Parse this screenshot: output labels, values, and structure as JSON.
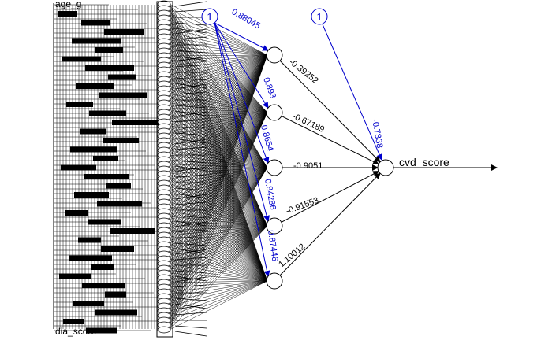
{
  "diagram": {
    "output_label": "cvd_score",
    "bias_label": "1",
    "input_labels_visible": [
      "age_g",
      "dia_score"
    ],
    "hidden_bias_weights": [
      "0.88045",
      "0.893",
      "0.8654",
      "0.84286",
      "0.87446"
    ],
    "hidden_output_weights": [
      "-0.39252",
      "-0.67189",
      "-0.9051",
      "-0.91553",
      "1.10012"
    ],
    "output_bias_weight": "-0.7338",
    "colors": {
      "bias": "#0000cc",
      "edge": "#000000",
      "node_fill": "#ffffff"
    }
  }
}
